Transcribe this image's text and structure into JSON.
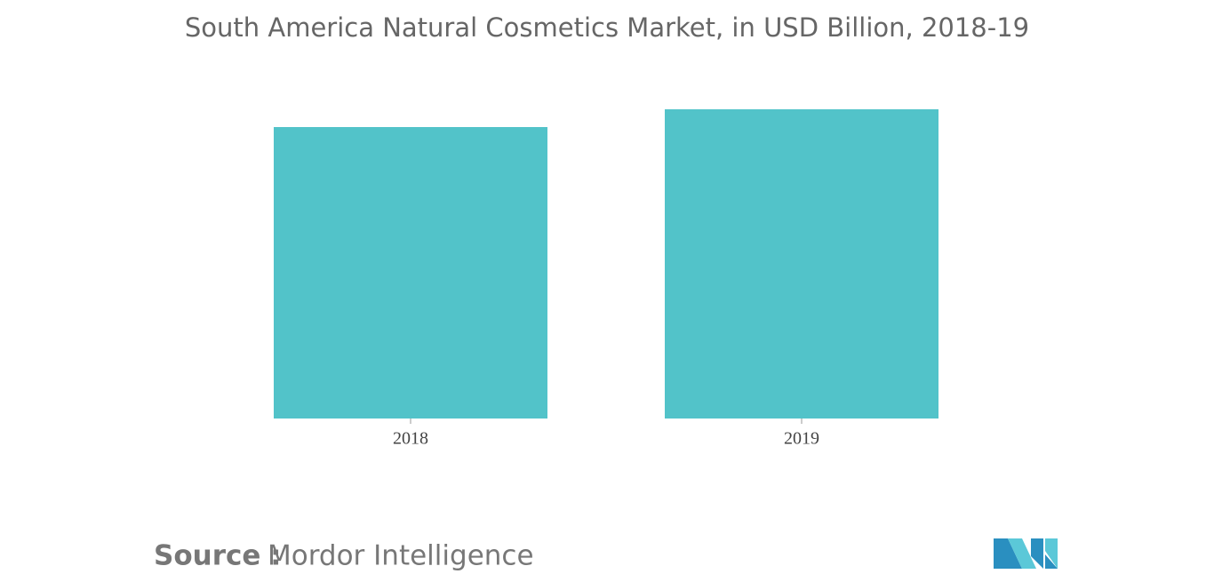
{
  "chart_data": {
    "type": "bar",
    "title": "South America Natural Cosmetics Market, in USD Billion, 2018-19",
    "categories": [
      "2018",
      "2019"
    ],
    "values": [
      3.28,
      3.48
    ],
    "color": "#52c3c9",
    "ylim": [
      0,
      4
    ],
    "source_label": "Source :",
    "source": "Mordor Intelligence"
  }
}
